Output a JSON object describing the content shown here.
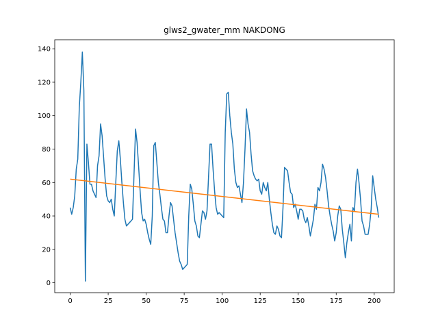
{
  "chart_data": {
    "type": "line",
    "title": "glws2_gwater_mm NAKDONG",
    "xlim": [
      -10.15,
      213.15
    ],
    "xticks": [
      0,
      25,
      50,
      75,
      100,
      125,
      150,
      175,
      200
    ],
    "ylim": [
      -5.9,
      145.4
    ],
    "yticks": [
      0,
      20,
      40,
      60,
      80,
      100,
      120,
      140
    ],
    "series": [
      {
        "color": "#1f77b4",
        "x": [
          0,
          1,
          2,
          3,
          4,
          5,
          6,
          7,
          8,
          9,
          10,
          11,
          12,
          13,
          14,
          15,
          16,
          17,
          18,
          19,
          20,
          21,
          22,
          23,
          24,
          25,
          26,
          27,
          28,
          29,
          30,
          31,
          32,
          33,
          34,
          35,
          36,
          37,
          38,
          39,
          40,
          41,
          42,
          43,
          44,
          45,
          46,
          47,
          48,
          49,
          50,
          51,
          52,
          53,
          54,
          55,
          56,
          57,
          58,
          59,
          60,
          61,
          62,
          63,
          64,
          65,
          66,
          67,
          68,
          69,
          70,
          71,
          72,
          73,
          74,
          75,
          76,
          77,
          78,
          79,
          80,
          81,
          82,
          83,
          84,
          85,
          86,
          87,
          88,
          89,
          90,
          91,
          92,
          93,
          94,
          95,
          96,
          97,
          98,
          99,
          100,
          101,
          102,
          103,
          104,
          105,
          106,
          107,
          108,
          109,
          110,
          111,
          112,
          113,
          114,
          115,
          116,
          117,
          118,
          119,
          120,
          121,
          122,
          123,
          124,
          125,
          126,
          127,
          128,
          129,
          130,
          131,
          132,
          133,
          134,
          135,
          136,
          137,
          138,
          139,
          140,
          141,
          142,
          143,
          144,
          145,
          146,
          147,
          148,
          149,
          150,
          151,
          152,
          153,
          154,
          155,
          156,
          157,
          158,
          159,
          160,
          161,
          162,
          163,
          164,
          165,
          166,
          167,
          168,
          169,
          170,
          171,
          172,
          173,
          174,
          175,
          176,
          177,
          178,
          179,
          180,
          181,
          182,
          183,
          184,
          185,
          186,
          187,
          188,
          189,
          190,
          191,
          192,
          193,
          194,
          195,
          196,
          197,
          198,
          199,
          200,
          201,
          202,
          203
        ],
        "values": [
          45,
          41,
          45,
          52,
          68,
          74,
          105,
          120,
          138,
          115,
          1,
          83,
          72,
          59,
          59,
          55,
          53,
          51,
          70,
          76,
          95,
          88,
          75,
          62,
          52,
          49,
          48,
          50,
          44,
          40,
          60,
          79,
          85,
          74,
          60,
          48,
          38,
          34,
          35,
          36,
          37,
          38,
          65,
          92,
          84,
          70,
          55,
          42,
          37,
          38,
          35,
          30,
          26,
          23,
          40,
          82,
          84,
          72,
          60,
          53,
          45,
          38,
          37,
          30,
          30,
          40,
          48,
          46,
          38,
          30,
          24,
          18,
          13,
          11,
          8,
          9,
          10,
          11,
          40,
          59,
          56,
          47,
          37,
          34,
          28,
          27,
          35,
          43,
          42,
          38,
          43,
          63,
          83,
          83,
          68,
          55,
          45,
          41,
          42,
          41,
          40,
          39,
          90,
          113,
          114,
          100,
          90,
          83,
          68,
          60,
          57,
          58,
          53,
          48,
          60,
          80,
          104,
          95,
          90,
          77,
          67,
          64,
          62,
          61,
          62,
          55,
          53,
          60,
          57,
          55,
          60,
          50,
          42,
          35,
          30,
          29,
          34,
          32,
          28,
          27,
          45,
          69,
          68,
          67,
          60,
          54,
          53,
          45,
          47,
          43,
          38,
          44,
          44,
          43,
          38,
          36,
          39,
          34,
          28,
          33,
          38,
          47,
          44,
          57,
          55,
          60,
          71,
          68,
          63,
          55,
          46,
          40,
          35,
          31,
          25,
          30,
          40,
          46,
          44,
          32,
          24,
          15,
          24,
          30,
          35,
          25,
          45,
          43,
          60,
          68,
          60,
          50,
          37,
          34,
          29,
          29,
          29,
          35,
          44,
          64,
          57,
          50,
          45,
          39
        ]
      },
      {
        "color": "#ff7f0e",
        "x": [
          0,
          203
        ],
        "values": [
          62,
          41
        ]
      }
    ]
  }
}
